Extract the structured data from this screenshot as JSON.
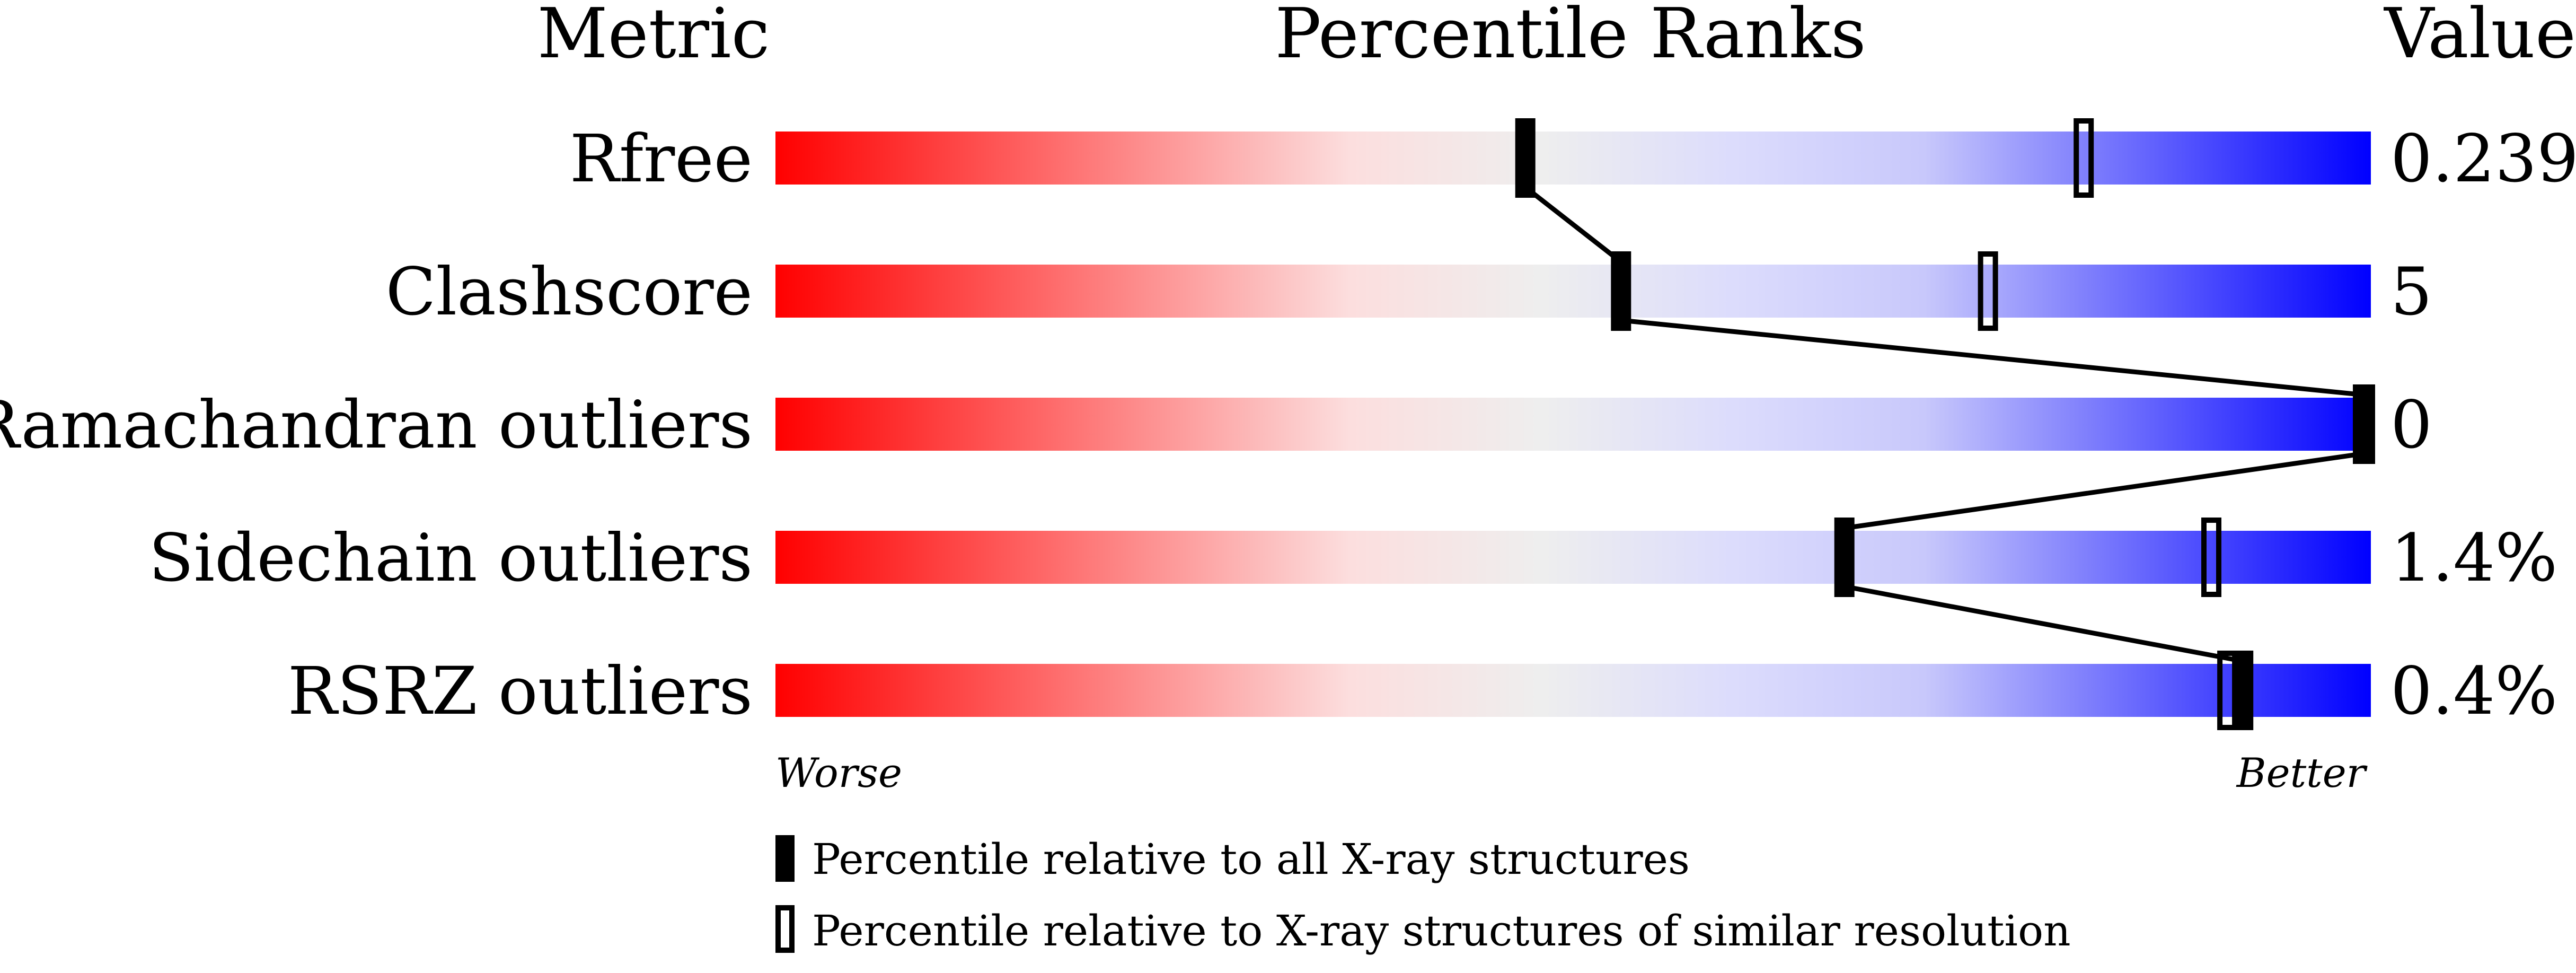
{
  "chart_data": {
    "type": "table",
    "headers": {
      "metric": "Metric",
      "percentile": "Percentile Ranks",
      "value": "Value"
    },
    "axis": {
      "left_label": "Worse",
      "right_label": "Better",
      "range": [
        0,
        100
      ]
    },
    "rows": [
      {
        "metric": "Rfree",
        "value": "0.239",
        "percentile_all": 47,
        "percentile_similar": 82
      },
      {
        "metric": "Clashscore",
        "value": "5",
        "percentile_all": 53,
        "percentile_similar": 76
      },
      {
        "metric": "Ramachandran outliers",
        "value": "0",
        "percentile_all": 100,
        "percentile_similar": 100
      },
      {
        "metric": "Sidechain outliers",
        "value": "1.4%",
        "percentile_all": 67,
        "percentile_similar": 90
      },
      {
        "metric": "RSRZ outliers",
        "value": "0.4%",
        "percentile_all": 92,
        "percentile_similar": 91
      }
    ],
    "legend": {
      "all": "Percentile relative to all X-ray structures",
      "similar": "Percentile relative to X-ray structures of similar resolution"
    },
    "colors": {
      "worse": "#ff0000",
      "middle": "#eeeeee",
      "better": "#0000ff",
      "marker": "#000000"
    }
  }
}
